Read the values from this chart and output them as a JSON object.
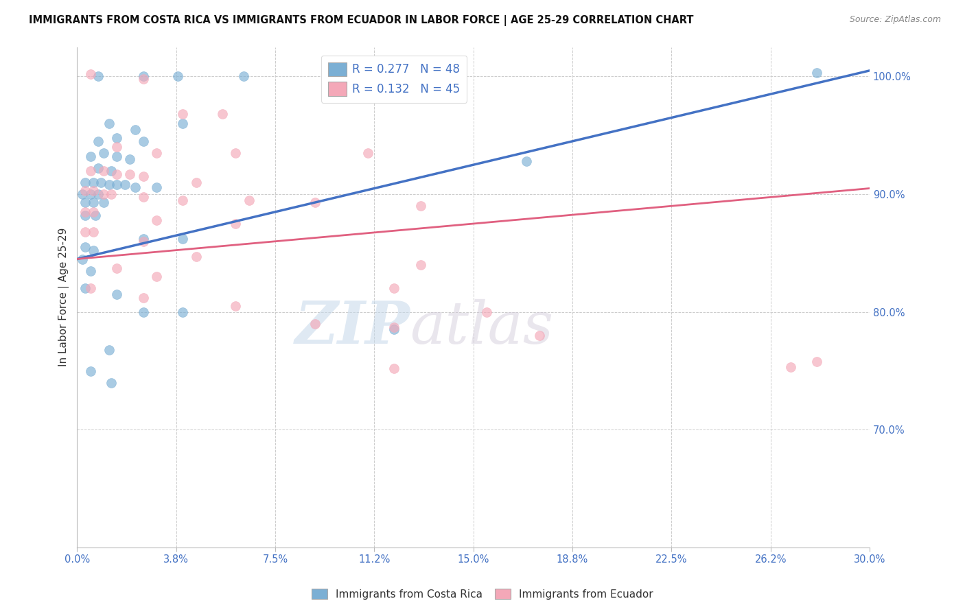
{
  "title": "IMMIGRANTS FROM COSTA RICA VS IMMIGRANTS FROM ECUADOR IN LABOR FORCE | AGE 25-29 CORRELATION CHART",
  "source": "Source: ZipAtlas.com",
  "ylabel": "In Labor Force | Age 25-29",
  "legend_blue_r": "R = 0.277",
  "legend_blue_n": "N = 48",
  "legend_pink_r": "R = 0.132",
  "legend_pink_n": "N = 45",
  "legend_blue_label": "Immigrants from Costa Rica",
  "legend_pink_label": "Immigrants from Ecuador",
  "xmin": 0.0,
  "xmax": 0.3,
  "ymin": 0.6,
  "ymax": 1.025,
  "blue_line_x": [
    0.0,
    0.3
  ],
  "blue_line_y": [
    0.845,
    1.005
  ],
  "pink_line_x": [
    0.0,
    0.3
  ],
  "pink_line_y": [
    0.845,
    0.905
  ],
  "blue_scatter": [
    [
      0.008,
      1.0
    ],
    [
      0.025,
      1.0
    ],
    [
      0.038,
      1.0
    ],
    [
      0.063,
      1.0
    ],
    [
      0.012,
      0.96
    ],
    [
      0.022,
      0.955
    ],
    [
      0.04,
      0.96
    ],
    [
      0.008,
      0.945
    ],
    [
      0.015,
      0.948
    ],
    [
      0.025,
      0.945
    ],
    [
      0.005,
      0.932
    ],
    [
      0.01,
      0.935
    ],
    [
      0.015,
      0.932
    ],
    [
      0.02,
      0.93
    ],
    [
      0.008,
      0.922
    ],
    [
      0.013,
      0.92
    ],
    [
      0.003,
      0.91
    ],
    [
      0.006,
      0.91
    ],
    [
      0.009,
      0.91
    ],
    [
      0.012,
      0.908
    ],
    [
      0.015,
      0.908
    ],
    [
      0.018,
      0.908
    ],
    [
      0.022,
      0.906
    ],
    [
      0.03,
      0.906
    ],
    [
      0.002,
      0.9
    ],
    [
      0.005,
      0.9
    ],
    [
      0.008,
      0.9
    ],
    [
      0.003,
      0.893
    ],
    [
      0.006,
      0.893
    ],
    [
      0.01,
      0.893
    ],
    [
      0.003,
      0.882
    ],
    [
      0.007,
      0.882
    ],
    [
      0.025,
      0.862
    ],
    [
      0.04,
      0.862
    ],
    [
      0.003,
      0.855
    ],
    [
      0.006,
      0.852
    ],
    [
      0.002,
      0.845
    ],
    [
      0.005,
      0.835
    ],
    [
      0.003,
      0.82
    ],
    [
      0.015,
      0.815
    ],
    [
      0.025,
      0.8
    ],
    [
      0.04,
      0.8
    ],
    [
      0.17,
      0.928
    ],
    [
      0.012,
      0.768
    ],
    [
      0.005,
      0.75
    ],
    [
      0.013,
      0.74
    ],
    [
      0.12,
      0.785
    ],
    [
      0.28,
      1.003
    ]
  ],
  "pink_scatter": [
    [
      0.005,
      1.002
    ],
    [
      0.025,
      0.998
    ],
    [
      0.04,
      0.968
    ],
    [
      0.055,
      0.968
    ],
    [
      0.015,
      0.94
    ],
    [
      0.03,
      0.935
    ],
    [
      0.06,
      0.935
    ],
    [
      0.11,
      0.935
    ],
    [
      0.005,
      0.92
    ],
    [
      0.01,
      0.92
    ],
    [
      0.015,
      0.917
    ],
    [
      0.02,
      0.917
    ],
    [
      0.025,
      0.915
    ],
    [
      0.045,
      0.91
    ],
    [
      0.003,
      0.903
    ],
    [
      0.006,
      0.903
    ],
    [
      0.01,
      0.9
    ],
    [
      0.013,
      0.9
    ],
    [
      0.025,
      0.898
    ],
    [
      0.04,
      0.895
    ],
    [
      0.065,
      0.895
    ],
    [
      0.09,
      0.893
    ],
    [
      0.13,
      0.89
    ],
    [
      0.003,
      0.885
    ],
    [
      0.006,
      0.885
    ],
    [
      0.03,
      0.878
    ],
    [
      0.06,
      0.875
    ],
    [
      0.003,
      0.868
    ],
    [
      0.006,
      0.868
    ],
    [
      0.025,
      0.86
    ],
    [
      0.045,
      0.847
    ],
    [
      0.015,
      0.837
    ],
    [
      0.03,
      0.83
    ],
    [
      0.005,
      0.82
    ],
    [
      0.025,
      0.812
    ],
    [
      0.06,
      0.805
    ],
    [
      0.13,
      0.84
    ],
    [
      0.12,
      0.82
    ],
    [
      0.155,
      0.8
    ],
    [
      0.09,
      0.79
    ],
    [
      0.12,
      0.787
    ],
    [
      0.175,
      0.78
    ],
    [
      0.12,
      0.752
    ],
    [
      0.27,
      0.753
    ],
    [
      0.28,
      0.758
    ]
  ],
  "blue_color": "#7bafd4",
  "pink_color": "#f4a8b8",
  "blue_line_color": "#4472c4",
  "pink_line_color": "#e06080",
  "watermark_zip": "ZIP",
  "watermark_atlas": "atlas",
  "background_color": "#ffffff",
  "dot_alpha": 0.65,
  "dot_size": 100,
  "grid_color": "#cccccc",
  "yticks": [
    0.7,
    0.8,
    0.9,
    1.0
  ],
  "xticks_count": 9
}
